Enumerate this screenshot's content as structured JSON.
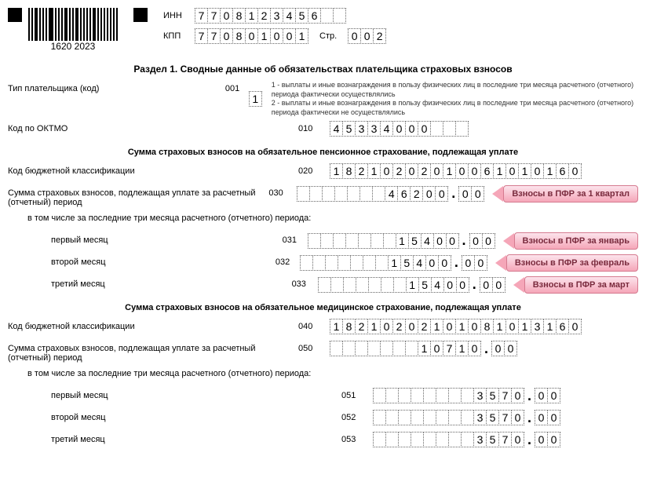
{
  "barcode_text": "1620  2023",
  "header": {
    "inn_label": "ИНН",
    "inn": [
      "7",
      "7",
      "0",
      "8",
      "1",
      "2",
      "3",
      "4",
      "5",
      "6",
      "",
      ""
    ],
    "kpp_label": "КПП",
    "kpp": [
      "7",
      "7",
      "0",
      "8",
      "0",
      "1",
      "0",
      "0",
      "1"
    ],
    "page_label": "Стр.",
    "page": [
      "0",
      "0",
      "2"
    ]
  },
  "section1_title": "Раздел 1. Сводные данные об обязательствах плательщика страховых взносов",
  "payer_type": {
    "label": "Тип плательщика (код)",
    "code": "001",
    "cells": [
      "1"
    ],
    "hint": "1 - выплаты и иные вознаграждения в пользу физических лиц в последние три месяца расчетного (отчетного) периода фактически осуществлялись\n2 - выплаты и иные вознаграждения в пользу физических лиц в последние три месяца расчетного (отчетного) периода фактически не осуществлялись"
  },
  "oktmo": {
    "label": "Код по ОКТМО",
    "code": "010",
    "cells": [
      "4",
      "5",
      "3",
      "3",
      "4",
      "0",
      "0",
      "0",
      "",
      "",
      ""
    ]
  },
  "pension": {
    "title": "Сумма страховых взносов на обязательное пенсионное страхование, подлежащая уплате",
    "kbk": {
      "label": "Код бюджетной классификации",
      "code": "020",
      "cells": [
        "1",
        "8",
        "2",
        "1",
        "0",
        "2",
        "0",
        "2",
        "0",
        "1",
        "0",
        "0",
        "6",
        "1",
        "0",
        "1",
        "0",
        "1",
        "6",
        "0"
      ]
    },
    "total": {
      "label": "Сумма страховых взносов, подлежащая уплате за расчетный (отчетный) период",
      "code": "030",
      "int": [
        "",
        "",
        "",
        "",
        "",
        "",
        "",
        "4",
        "6",
        "2",
        "0",
        "0"
      ],
      "dec": [
        "0",
        "0"
      ],
      "callout": "Взносы в ПФР за 1 квартал"
    },
    "sublabel": "в том числе за последние три месяца расчетного (отчетного) периода:",
    "m1": {
      "label": "первый месяц",
      "code": "031",
      "int": [
        "",
        "",
        "",
        "",
        "",
        "",
        "",
        "1",
        "5",
        "4",
        "0",
        "0"
      ],
      "dec": [
        "0",
        "0"
      ],
      "callout": "Взносы в ПФР за январь"
    },
    "m2": {
      "label": "второй месяц",
      "code": "032",
      "int": [
        "",
        "",
        "",
        "",
        "",
        "",
        "",
        "1",
        "5",
        "4",
        "0",
        "0"
      ],
      "dec": [
        "0",
        "0"
      ],
      "callout": "Взносы в ПФР за февраль"
    },
    "m3": {
      "label": "третий месяц",
      "code": "033",
      "int": [
        "",
        "",
        "",
        "",
        "",
        "",
        "",
        "1",
        "5",
        "4",
        "0",
        "0"
      ],
      "dec": [
        "0",
        "0"
      ],
      "callout": "Взносы в ПФР за март"
    }
  },
  "medical": {
    "title": "Сумма страховых взносов на обязательное медицинское страхование, подлежащая уплате",
    "kbk": {
      "label": "Код бюджетной классификации",
      "code": "040",
      "cells": [
        "1",
        "8",
        "2",
        "1",
        "0",
        "2",
        "0",
        "2",
        "1",
        "0",
        "1",
        "0",
        "8",
        "1",
        "0",
        "1",
        "3",
        "1",
        "6",
        "0"
      ]
    },
    "total": {
      "label": "Сумма страховых взносов, подлежащая уплате за расчетный (отчетный) период",
      "code": "050",
      "int": [
        "",
        "",
        "",
        "",
        "",
        "",
        "",
        "1",
        "0",
        "7",
        "1",
        "0"
      ],
      "dec": [
        "0",
        "0"
      ]
    },
    "sublabel": "в том числе за последние три месяца расчетного (отчетного) периода:",
    "m1": {
      "label": "первый месяц",
      "code": "051",
      "int": [
        "",
        "",
        "",
        "",
        "",
        "",
        "",
        "",
        "3",
        "5",
        "7",
        "0"
      ],
      "dec": [
        "0",
        "0"
      ]
    },
    "m2": {
      "label": "второй месяц",
      "code": "052",
      "int": [
        "",
        "",
        "",
        "",
        "",
        "",
        "",
        "",
        "3",
        "5",
        "7",
        "0"
      ],
      "dec": [
        "0",
        "0"
      ]
    },
    "m3": {
      "label": "третий месяц",
      "code": "053",
      "int": [
        "",
        "",
        "",
        "",
        "",
        "",
        "",
        "",
        "3",
        "5",
        "7",
        "0"
      ],
      "dec": [
        "0",
        "0"
      ]
    }
  }
}
